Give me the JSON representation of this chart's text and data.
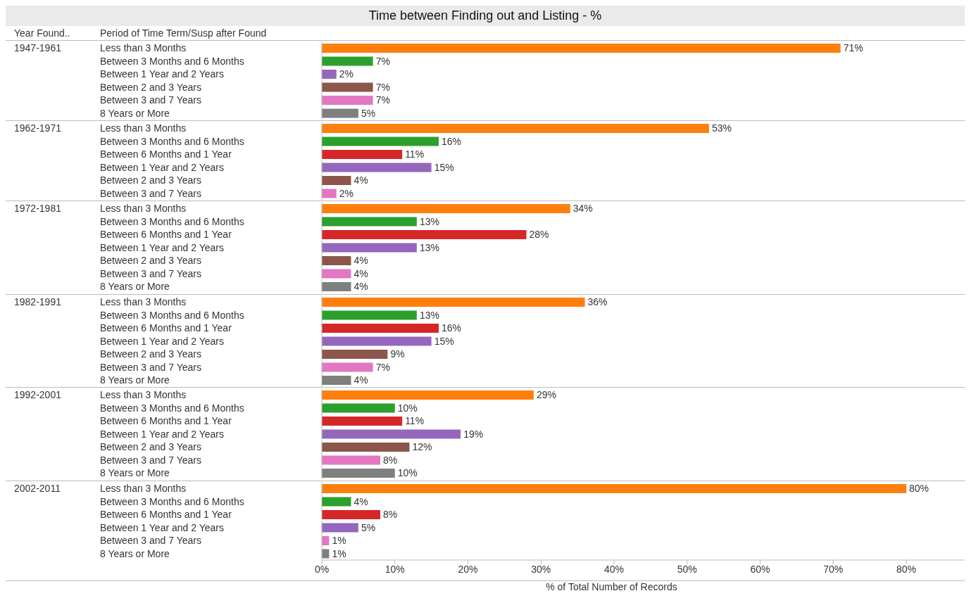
{
  "chart_data": [
    {
      "type": "bar",
      "orientation": "horizontal",
      "title": "Time between Finding out and Listing - %",
      "annotations": [
        "Year Found..",
        "Period of Time Term/Susp after Found"
      ],
      "ylabel": "1947-1961",
      "tick_labels": "y",
      "xlim": [
        0,
        88
      ],
      "categories": [
        "Less than 3 Months",
        "Between 3 Months and 6 Months",
        "Between 1 Year and 2 Years",
        "Between 2 and 3 Years",
        "Between 3 and 7 Years",
        "8 Years or More"
      ],
      "values": [
        71,
        7,
        2,
        7,
        7,
        5
      ],
      "colors": [
        "#ff7f0e",
        "#2ca02c",
        "#9467bd",
        "#8c564b",
        "#e377c2",
        "#7f7f7f"
      ],
      "value_labels": [
        "71%",
        "7%",
        "2%",
        "7%",
        "7%",
        "5%"
      ]
    },
    {
      "type": "bar",
      "orientation": "horizontal",
      "ylabel": "1962-1971",
      "tick_labels": "y",
      "xlim": [
        0,
        88
      ],
      "categories": [
        "Less than 3 Months",
        "Between 3 Months and 6 Months",
        "Between 6 Months and 1 Year",
        "Between 1 Year and 2 Years",
        "Between 2 and 3 Years",
        "Between 3 and 7 Years"
      ],
      "values": [
        53,
        16,
        11,
        15,
        4,
        2
      ],
      "colors": [
        "#ff7f0e",
        "#2ca02c",
        "#d62728",
        "#9467bd",
        "#8c564b",
        "#e377c2"
      ],
      "value_labels": [
        "53%",
        "16%",
        "11%",
        "15%",
        "4%",
        "2%"
      ]
    },
    {
      "type": "bar",
      "orientation": "horizontal",
      "ylabel": "1972-1981",
      "tick_labels": "y",
      "xlim": [
        0,
        88
      ],
      "categories": [
        "Less than 3 Months",
        "Between 3 Months and 6 Months",
        "Between 6 Months and 1 Year",
        "Between 1 Year and 2 Years",
        "Between 2 and 3 Years",
        "Between 3 and 7 Years",
        "8 Years or More"
      ],
      "values": [
        34,
        13,
        28,
        13,
        4,
        4,
        4
      ],
      "colors": [
        "#ff7f0e",
        "#2ca02c",
        "#d62728",
        "#9467bd",
        "#8c564b",
        "#e377c2",
        "#7f7f7f"
      ],
      "value_labels": [
        "34%",
        "13%",
        "28%",
        "13%",
        "4%",
        "4%",
        "4%"
      ]
    },
    {
      "type": "bar",
      "orientation": "horizontal",
      "ylabel": "1982-1991",
      "tick_labels": "y",
      "xlim": [
        0,
        88
      ],
      "categories": [
        "Less than 3 Months",
        "Between 3 Months and 6 Months",
        "Between 6 Months and 1 Year",
        "Between 1 Year and 2 Years",
        "Between 2 and 3 Years",
        "Between 3 and 7 Years",
        "8 Years or More"
      ],
      "values": [
        36,
        13,
        16,
        15,
        9,
        7,
        4
      ],
      "colors": [
        "#ff7f0e",
        "#2ca02c",
        "#d62728",
        "#9467bd",
        "#8c564b",
        "#e377c2",
        "#7f7f7f"
      ],
      "value_labels": [
        "36%",
        "13%",
        "16%",
        "15%",
        "9%",
        "7%",
        "4%"
      ]
    },
    {
      "type": "bar",
      "orientation": "horizontal",
      "ylabel": "1992-2001",
      "tick_labels": "y",
      "xlim": [
        0,
        88
      ],
      "categories": [
        "Less than 3 Months",
        "Between 3 Months and 6 Months",
        "Between 6 Months and 1 Year",
        "Between 1 Year and 2 Years",
        "Between 2 and 3 Years",
        "Between 3 and 7 Years",
        "8 Years or More"
      ],
      "values": [
        29,
        10,
        11,
        19,
        12,
        8,
        10
      ],
      "colors": [
        "#ff7f0e",
        "#2ca02c",
        "#d62728",
        "#9467bd",
        "#8c564b",
        "#e377c2",
        "#7f7f7f"
      ],
      "value_labels": [
        "29%",
        "10%",
        "11%",
        "19%",
        "12%",
        "8%",
        "10%"
      ]
    },
    {
      "type": "bar",
      "orientation": "horizontal",
      "ylabel": "2002-2011",
      "xlabel": "% of Total Number of Records",
      "xlim": [
        0,
        88
      ],
      "xticks": [
        {
          "value": 0,
          "label": "0%"
        },
        {
          "value": 10,
          "label": "10%"
        },
        {
          "value": 20,
          "label": "20%"
        },
        {
          "value": 30,
          "label": "30%"
        },
        {
          "value": 40,
          "label": "40%"
        },
        {
          "value": 50,
          "label": "50%"
        },
        {
          "value": 60,
          "label": "60%"
        },
        {
          "value": 70,
          "label": "70%"
        },
        {
          "value": 80,
          "label": "80%"
        }
      ],
      "categories": [
        "Less than 3 Months",
        "Between 3 Months and 6 Months",
        "Between 6 Months and 1 Year",
        "Between 1 Year and 2 Years",
        "Between 3 and 7 Years",
        "8 Years or More"
      ],
      "values": [
        80,
        4,
        8,
        5,
        1,
        1
      ],
      "colors": [
        "#ff7f0e",
        "#2ca02c",
        "#d62728",
        "#9467bd",
        "#e377c2",
        "#7f7f7f"
      ],
      "value_labels": [
        "80%",
        "4%",
        "8%",
        "5%",
        "1%",
        "1%"
      ]
    }
  ]
}
